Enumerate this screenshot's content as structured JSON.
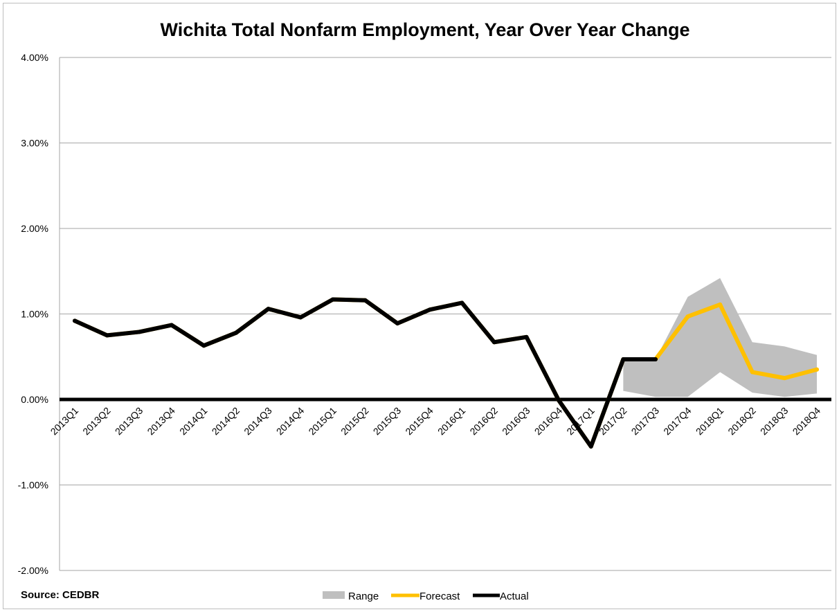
{
  "source_note": "Source: CEDBR",
  "colors": {
    "range": "#bfbfbf",
    "forecast": "#ffc000",
    "actual": "#000000",
    "grid": "#a6a6a6"
  },
  "chart_data": {
    "type": "line",
    "title": "Wichita Total Nonfarm Employment, Year Over Year Change",
    "xlabel": "",
    "ylabel": "",
    "categories": [
      "2013Q1",
      "2013Q2",
      "2013Q3",
      "2013Q4",
      "2014Q1",
      "2014Q2",
      "2014Q3",
      "2014Q4",
      "2015Q1",
      "2015Q2",
      "2015Q3",
      "2015Q4",
      "2016Q1",
      "2016Q2",
      "2016Q3",
      "2016Q4",
      "2017Q1",
      "2017Q2",
      "2017Q3",
      "2017Q4",
      "2018Q1",
      "2018Q2",
      "2018Q3",
      "2018Q4"
    ],
    "yticks": [
      "4.00%",
      "3.00%",
      "2.00%",
      "1.00%",
      "0.00%",
      "-1.00%",
      "-2.00%"
    ],
    "ylim": [
      -2.0,
      4.0
    ],
    "grid": true,
    "legend_position": "bottom",
    "series": [
      {
        "name": "Range",
        "kind": "area",
        "low": [
          null,
          null,
          null,
          null,
          null,
          null,
          null,
          null,
          null,
          null,
          null,
          null,
          null,
          null,
          null,
          null,
          null,
          0.1,
          0.03,
          0.03,
          0.32,
          0.08,
          0.03,
          0.07
        ],
        "high": [
          null,
          null,
          null,
          null,
          null,
          null,
          null,
          null,
          null,
          null,
          null,
          null,
          null,
          null,
          null,
          null,
          null,
          0.47,
          0.47,
          1.2,
          1.42,
          0.67,
          0.62,
          0.52
        ]
      },
      {
        "name": "Forecast",
        "kind": "line",
        "values": [
          0.92,
          0.75,
          0.79,
          0.87,
          0.63,
          0.78,
          1.06,
          0.96,
          1.17,
          1.16,
          0.89,
          1.05,
          1.13,
          0.67,
          0.73,
          -0.01,
          -0.55,
          0.47,
          0.47,
          0.97,
          1.11,
          0.32,
          0.25,
          0.35
        ]
      },
      {
        "name": "Actual",
        "kind": "line",
        "values": [
          0.92,
          0.75,
          0.79,
          0.87,
          0.63,
          0.78,
          1.06,
          0.96,
          1.17,
          1.16,
          0.89,
          1.05,
          1.13,
          0.67,
          0.73,
          -0.01,
          -0.55,
          0.47,
          0.47,
          null,
          null,
          null,
          null,
          null
        ]
      }
    ],
    "zero_line": 0.0
  }
}
